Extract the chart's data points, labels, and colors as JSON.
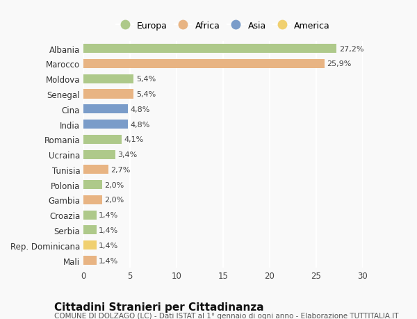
{
  "categories": [
    "Albania",
    "Marocco",
    "Moldova",
    "Senegal",
    "Cina",
    "India",
    "Romania",
    "Ucraina",
    "Tunisia",
    "Polonia",
    "Gambia",
    "Croazia",
    "Serbia",
    "Rep. Dominicana",
    "Mali"
  ],
  "values": [
    27.2,
    25.9,
    5.4,
    5.4,
    4.8,
    4.8,
    4.1,
    3.4,
    2.7,
    2.0,
    2.0,
    1.4,
    1.4,
    1.4,
    1.4
  ],
  "labels": [
    "27,2%",
    "25,9%",
    "5,4%",
    "5,4%",
    "4,8%",
    "4,8%",
    "4,1%",
    "3,4%",
    "2,7%",
    "2,0%",
    "2,0%",
    "1,4%",
    "1,4%",
    "1,4%",
    "1,4%"
  ],
  "continents": [
    "Europa",
    "Africa",
    "Europa",
    "Africa",
    "Asia",
    "Asia",
    "Europa",
    "Europa",
    "Africa",
    "Europa",
    "Africa",
    "Europa",
    "Europa",
    "America",
    "Africa"
  ],
  "colors": {
    "Europa": "#aec98a",
    "Africa": "#e8b483",
    "Asia": "#7a9cc9",
    "America": "#f0d070"
  },
  "legend_order": [
    "Europa",
    "Africa",
    "Asia",
    "America"
  ],
  "xlim": [
    0,
    30
  ],
  "xticks": [
    0,
    5,
    10,
    15,
    20,
    25,
    30
  ],
  "title": "Cittadini Stranieri per Cittadinanza",
  "subtitle": "COMUNE DI DOLZAGO (LC) - Dati ISTAT al 1° gennaio di ogni anno - Elaborazione TUTTITALIA.IT",
  "background_color": "#f9f9f9",
  "grid_color": "#ffffff",
  "bar_height": 0.6,
  "label_fontsize": 8,
  "ytick_fontsize": 8.5,
  "xtick_fontsize": 8.5,
  "title_fontsize": 11,
  "subtitle_fontsize": 7.5,
  "legend_fontsize": 9
}
